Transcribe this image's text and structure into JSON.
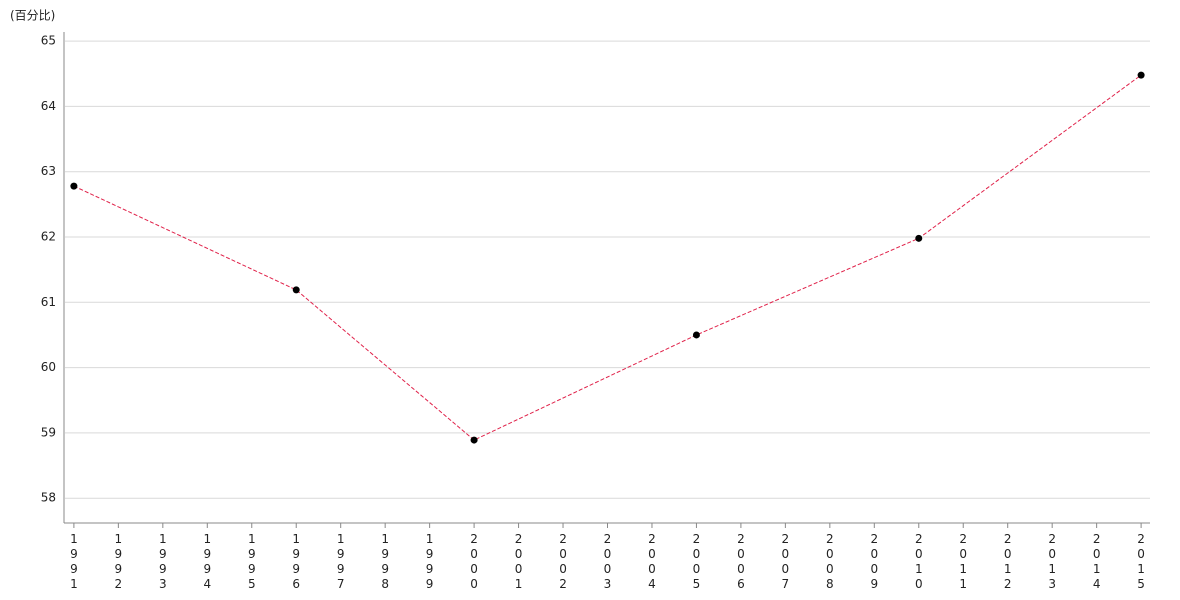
{
  "chart_data": {
    "type": "line",
    "y_label": "(百分比)",
    "x": [
      1991,
      1996,
      2000,
      2005,
      2010,
      2015
    ],
    "series": [
      {
        "color": "#e0224a",
        "values": [
          62.78,
          61.19,
          58.89,
          60.5,
          61.98,
          64.48
        ]
      }
    ],
    "xlim": [
      1990.8,
      2015.2
    ],
    "xticks": [
      1991,
      1992,
      1993,
      1994,
      1995,
      1996,
      1997,
      1998,
      1999,
      2000,
      2001,
      2002,
      2003,
      2004,
      2005,
      2006,
      2007,
      2008,
      2009,
      2010,
      2011,
      2012,
      2013,
      2014,
      2015
    ],
    "ylim": [
      57.62,
      65.14
    ],
    "yticks": [
      58,
      59,
      60,
      61,
      62,
      63,
      64,
      65
    ],
    "grid": true
  }
}
